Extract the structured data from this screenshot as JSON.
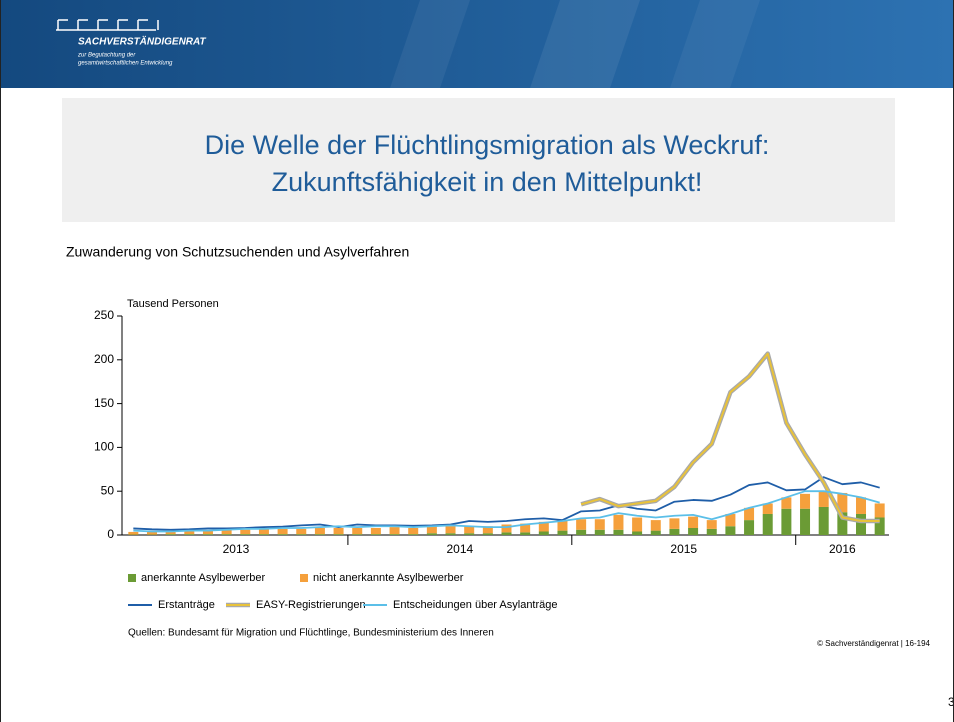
{
  "header": {
    "org": "SACHVERSTÄNDIGENRAT",
    "line1": "zur Begutachtung der",
    "line2": "gesamtwirtschaftlichen Entwicklung"
  },
  "slide_title": [
    "Die Welle der Flüchtlingsmigration als Weckruf:",
    "Zukunftsfähigkeit in den Mittelpunkt!"
  ],
  "chart_data": {
    "type": "bar",
    "title": "Zuwanderung von Schutzsuchenden und Asylverfahren",
    "ylabel": "Tausend Personen",
    "categories": [
      null,
      null,
      null,
      null,
      null,
      null,
      null,
      null,
      null,
      null,
      null,
      null,
      null,
      null,
      null,
      null,
      null,
      null,
      null,
      null,
      null,
      null,
      null,
      null,
      null,
      null,
      null,
      null,
      null,
      null,
      null,
      null,
      null,
      null,
      null,
      null,
      null,
      null,
      null,
      null,
      null
    ],
    "year_labels": [
      "2013",
      "2014",
      "2015",
      "2016"
    ],
    "ylim": [
      0,
      250
    ],
    "yticks": [
      0,
      50,
      100,
      150,
      200,
      250
    ],
    "series": [
      {
        "name": "anerkannte Asylbewerber",
        "type": "bar",
        "color": "#6b9b35",
        "values": [
          0.5,
          0.5,
          1,
          1,
          1,
          1,
          1,
          1,
          1,
          1,
          1,
          1,
          1,
          1,
          1,
          1,
          2,
          2,
          2,
          2,
          3,
          3,
          4,
          5,
          6,
          6,
          6,
          4,
          5,
          7,
          8,
          7,
          10,
          17,
          24,
          30,
          30,
          32,
          26,
          24,
          20
        ]
      },
      {
        "name": "nicht anerkannte Asylbewerber",
        "type": "bar",
        "color": "#f5a03c",
        "values": [
          3,
          3,
          3,
          4,
          4,
          5,
          5,
          6,
          6,
          6,
          7,
          7,
          7,
          7,
          8,
          7,
          8,
          8,
          8,
          8,
          9,
          10,
          11,
          12,
          12,
          12,
          17,
          16,
          12,
          12,
          13,
          10,
          14,
          14,
          12,
          13,
          17,
          18,
          22,
          19,
          16
        ]
      },
      {
        "name": "Erstanträge",
        "type": "line",
        "color": "#1f5ea8",
        "values": [
          7.5,
          6.5,
          6,
          6.5,
          7.5,
          7.5,
          8,
          9,
          9.5,
          11,
          12,
          9,
          12,
          11,
          11,
          10.5,
          11,
          12,
          16,
          15,
          16,
          18,
          19,
          17,
          27,
          28,
          34,
          30,
          28,
          38,
          40,
          39,
          46,
          57,
          60,
          51,
          52,
          66,
          58,
          60,
          54
        ]
      },
      {
        "name": "EASY-Registrierungen",
        "type": "line",
        "color": "#e8c23a",
        "outline": "#a9a9a9",
        "values": [
          null,
          null,
          null,
          null,
          null,
          null,
          null,
          null,
          null,
          null,
          null,
          null,
          null,
          null,
          null,
          null,
          null,
          null,
          null,
          null,
          null,
          null,
          null,
          null,
          35,
          41,
          33,
          36,
          39,
          55,
          83,
          104,
          163,
          181,
          207,
          128,
          92,
          60,
          20,
          16,
          16
        ]
      },
      {
        "name": "Entscheidungen über Asylanträge",
        "type": "line",
        "color": "#5bbfe8",
        "values": [
          5,
          4,
          4,
          5,
          5,
          6,
          7,
          7,
          8,
          8,
          9,
          10,
          9,
          10,
          10,
          9,
          10,
          11,
          10,
          9,
          9,
          12,
          14,
          16,
          19,
          20,
          25,
          22,
          20,
          22,
          23,
          18,
          24,
          31,
          36,
          43,
          50,
          50,
          47,
          43,
          37
        ]
      }
    ]
  },
  "source": "Quellen: Bundesamt für Migration und Flüchtlinge, Bundesministerium des Inneren",
  "copyright": "© Sachverständigenrat | 16-194",
  "page_number": "3"
}
